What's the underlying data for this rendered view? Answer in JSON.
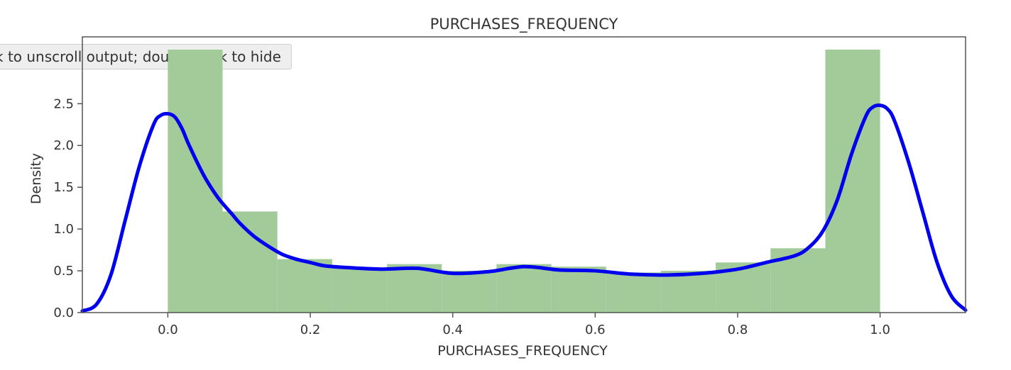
{
  "notebook": {
    "scroll_tooltip": "k to unscroll output; double click to hide"
  },
  "chart_data": {
    "type": "bar",
    "title": "PURCHASES_FREQUENCY",
    "xlabel": "PURCHASES_FREQUENCY",
    "ylabel": "Density",
    "xlim": [
      -0.12,
      1.12
    ],
    "ylim": [
      0,
      3.3
    ],
    "xticks": [
      "0.0",
      "0.2",
      "0.4",
      "0.6",
      "0.8",
      "1.0"
    ],
    "xtick_values": [
      0.0,
      0.2,
      0.4,
      0.6,
      0.8,
      1.0
    ],
    "yticks": [
      "0.0",
      "0.5",
      "1.0",
      "1.5",
      "2.0",
      "2.5"
    ],
    "ytick_values": [
      0.0,
      0.5,
      1.0,
      1.5,
      2.0,
      2.5
    ],
    "grid": false,
    "histogram": {
      "color": "#a3cb9a",
      "bin_edges": [
        0.0,
        0.0769,
        0.1538,
        0.2308,
        0.3077,
        0.3846,
        0.4615,
        0.5385,
        0.6154,
        0.6923,
        0.7692,
        0.8462,
        0.9231,
        1.0
      ],
      "densities": [
        3.3,
        1.21,
        0.64,
        0.53,
        0.58,
        0.5,
        0.58,
        0.55,
        0.48,
        0.5,
        0.6,
        0.77,
        3.2
      ]
    },
    "kde": {
      "color": "#0000ee",
      "x": [
        -0.12,
        -0.1,
        -0.08,
        -0.06,
        -0.04,
        -0.02,
        -0.01,
        0.0,
        0.01,
        0.02,
        0.03,
        0.05,
        0.07,
        0.09,
        0.1,
        0.12,
        0.14,
        0.16,
        0.18,
        0.2,
        0.22,
        0.25,
        0.3,
        0.35,
        0.4,
        0.45,
        0.48,
        0.5,
        0.52,
        0.55,
        0.6,
        0.65,
        0.7,
        0.75,
        0.8,
        0.84,
        0.88,
        0.9,
        0.92,
        0.94,
        0.96,
        0.98,
        0.99,
        1.0,
        1.01,
        1.02,
        1.04,
        1.06,
        1.08,
        1.1,
        1.12
      ],
      "y": [
        0.02,
        0.1,
        0.45,
        1.1,
        1.75,
        2.25,
        2.36,
        2.38,
        2.34,
        2.2,
        2.0,
        1.65,
        1.38,
        1.18,
        1.08,
        0.92,
        0.8,
        0.7,
        0.64,
        0.6,
        0.56,
        0.54,
        0.52,
        0.53,
        0.47,
        0.49,
        0.53,
        0.55,
        0.54,
        0.51,
        0.5,
        0.46,
        0.45,
        0.47,
        0.52,
        0.6,
        0.68,
        0.78,
        0.98,
        1.35,
        1.9,
        2.35,
        2.46,
        2.48,
        2.44,
        2.3,
        1.8,
        1.2,
        0.6,
        0.2,
        0.03
      ]
    }
  }
}
